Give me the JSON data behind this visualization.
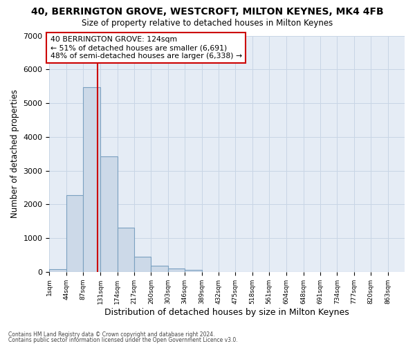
{
  "title": "40, BERRINGTON GROVE, WESTCROFT, MILTON KEYNES, MK4 4FB",
  "subtitle": "Size of property relative to detached houses in Milton Keynes",
  "xlabel": "Distribution of detached houses by size in Milton Keynes",
  "ylabel": "Number of detached properties",
  "annotation_line1": "40 BERRINGTON GROVE: 124sqm",
  "annotation_line2": "← 51% of detached houses are smaller (6,691)",
  "annotation_line3": "48% of semi-detached houses are larger (6,338) →",
  "vline_x": 124,
  "bin_edges": [
    1,
    44,
    87,
    131,
    174,
    217,
    260,
    303,
    346,
    389,
    432,
    475,
    518,
    561,
    604,
    648,
    691,
    734,
    777,
    820,
    863
  ],
  "bar_values": [
    75,
    2280,
    5480,
    3420,
    1310,
    450,
    190,
    105,
    60,
    5,
    0,
    0,
    0,
    0,
    0,
    0,
    0,
    0,
    0,
    0
  ],
  "bar_color": "#ccd9e8",
  "bar_edge_color": "#7aa0c0",
  "vline_color": "#cc0000",
  "ylim": [
    0,
    7000
  ],
  "yticks": [
    0,
    1000,
    2000,
    3000,
    4000,
    5000,
    6000,
    7000
  ],
  "grid_color": "#c8d5e5",
  "bg_color": "#e5ecf5",
  "footer_line1": "Contains HM Land Registry data © Crown copyright and database right 2024.",
  "footer_line2": "Contains public sector information licensed under the Open Government Licence v3.0."
}
